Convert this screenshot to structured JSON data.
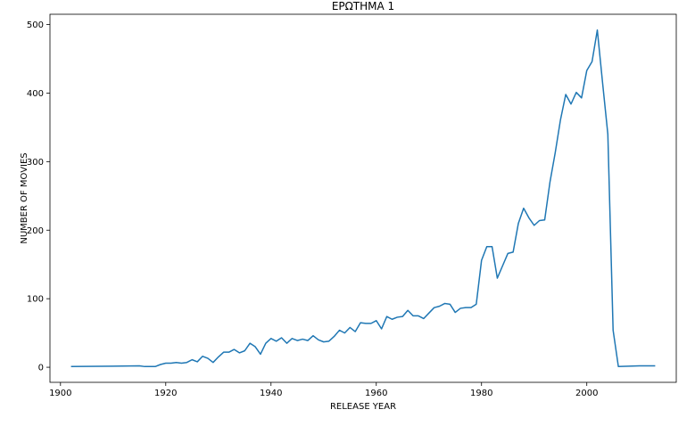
{
  "chart_data": {
    "type": "line",
    "title": "ΕΡΩΤΗΜΑ 1",
    "xlabel": "RELEASE YEAR",
    "ylabel": "NUMBER OF MOVIES",
    "xlim": [
      1898,
      2017
    ],
    "ylim": [
      -22,
      515
    ],
    "xticks": [
      1900,
      1920,
      1940,
      1960,
      1980,
      2000
    ],
    "yticks": [
      0,
      100,
      200,
      300,
      400,
      500
    ],
    "grid": false,
    "line_color": "#1f77b4",
    "series": [
      {
        "x": [
          1902,
          1915,
          1916,
          1918,
          1919,
          1920,
          1921,
          1922,
          1923,
          1924,
          1925,
          1926,
          1927,
          1928,
          1929,
          1930,
          1931,
          1932,
          1933,
          1934,
          1935,
          1936,
          1937,
          1938,
          1939,
          1940,
          1941,
          1942,
          1943,
          1944,
          1945,
          1946,
          1947,
          1948,
          1949,
          1950,
          1951,
          1952,
          1953,
          1954,
          1955,
          1956,
          1957,
          1958,
          1959,
          1960,
          1961,
          1962,
          1963,
          1964,
          1965,
          1966,
          1967,
          1968,
          1969,
          1970,
          1971,
          1972,
          1973,
          1974,
          1975,
          1976,
          1977,
          1978,
          1979,
          1980,
          1981,
          1982,
          1983,
          1984,
          1985,
          1986,
          1987,
          1988,
          1989,
          1990,
          1991,
          1992,
          1993,
          1994,
          1995,
          1996,
          1997,
          1998,
          1999,
          2000,
          2001,
          2002,
          2003,
          2004,
          2005,
          2006,
          2010,
          2013
        ],
        "y": [
          1,
          2,
          1,
          1,
          4,
          6,
          6,
          7,
          6,
          7,
          11,
          8,
          16,
          13,
          7,
          15,
          22,
          22,
          26,
          21,
          24,
          35,
          30,
          19,
          35,
          42,
          38,
          43,
          35,
          42,
          39,
          41,
          39,
          46,
          40,
          37,
          38,
          45,
          54,
          50,
          58,
          52,
          65,
          64,
          64,
          68,
          56,
          74,
          70,
          73,
          74,
          83,
          75,
          75,
          71,
          79,
          87,
          89,
          93,
          92,
          80,
          86,
          87,
          87,
          92,
          156,
          176,
          176,
          130,
          148,
          166,
          168,
          210,
          232,
          218,
          207,
          214,
          215,
          270,
          313,
          361,
          398,
          384,
          401,
          393,
          433,
          446,
          492,
          415,
          340,
          54,
          1,
          2,
          2
        ]
      }
    ]
  }
}
